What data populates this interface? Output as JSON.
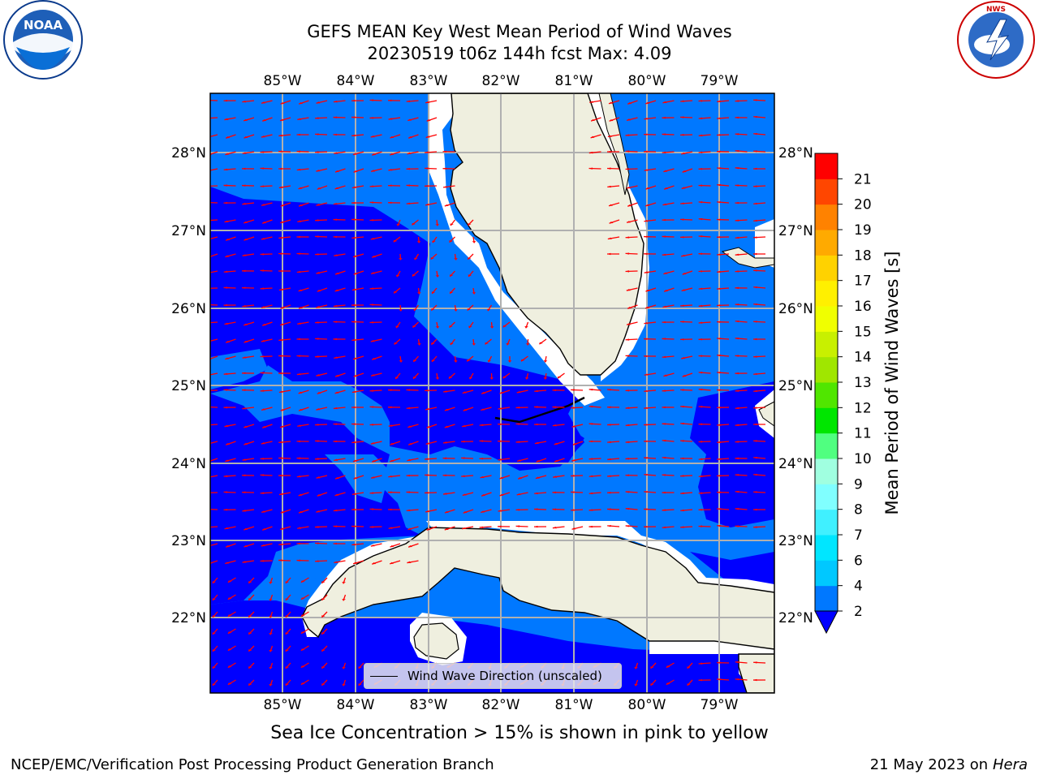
{
  "header": {
    "title_line1": "GEFS MEAN Key West Mean Period of Wind Waves",
    "title_line2": "20230519 t06z 144h fcst   Max: 4.09"
  },
  "logos": {
    "left_text": "NOAA",
    "left_ring_text": "NATIONAL OCEANIC AND ATMOSPHERIC ADMINISTRATION · U.S. DEPARTMENT OF COMMERCE",
    "right_ring_text": "NATIONAL WEATHER SERVICE"
  },
  "map": {
    "lon_ticks": [
      "85°W",
      "84°W",
      "83°W",
      "82°W",
      "81°W",
      "80°W",
      "79°W"
    ],
    "lat_ticks": [
      "28°N",
      "27°N",
      "26°N",
      "25°N",
      "24°N",
      "23°N",
      "22°N"
    ],
    "ocean_colors": {
      "level_2_4": "#0078FF",
      "below_2": "#0000FF"
    },
    "land_color": "#EFEFDF",
    "arrow_color": "#FF0000",
    "legend_label": "Wind Wave Direction (unscaled)"
  },
  "colorbar": {
    "label": "Mean Period of Wind Waves [s]",
    "tick_labels": [
      "2",
      "4",
      "6",
      "7",
      "8",
      "9",
      "10",
      "11",
      "12",
      "13",
      "14",
      "15",
      "16",
      "17",
      "18",
      "19",
      "20",
      "21"
    ],
    "colors": [
      "#0078FF",
      "#00C8FF",
      "#00E6FF",
      "#40F0FF",
      "#80FFFF",
      "#A0FFE0",
      "#50FF80",
      "#00E600",
      "#50E600",
      "#A0E600",
      "#C8F000",
      "#F0FF00",
      "#FFF000",
      "#FFD200",
      "#FFAA00",
      "#FF8200",
      "#FF4600",
      "#FF0000"
    ],
    "extend_min_color": "#0000FF"
  },
  "footer": {
    "note": "Sea Ice Concentration > 15% is shown in pink to yellow",
    "left": "NCEP/EMC/Verification Post Processing Product Generation Branch",
    "date": "21 May 2023 on",
    "machine": "Hera"
  }
}
